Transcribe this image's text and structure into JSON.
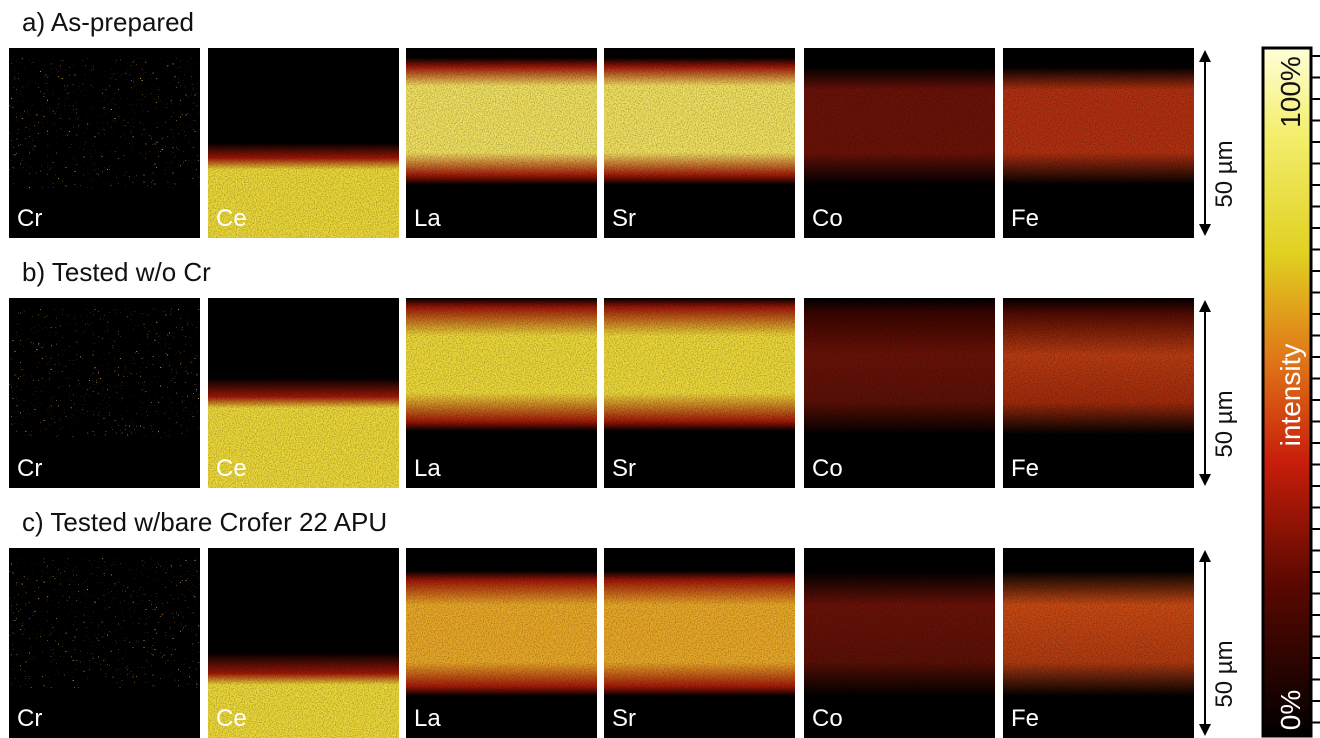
{
  "rows": [
    {
      "title": "a) As-prepared",
      "panels": [
        "Cr",
        "Ce",
        "La",
        "Sr",
        "Co",
        "Fe"
      ],
      "scale": "50 µm"
    },
    {
      "title": "b) Tested w/o Cr",
      "panels": [
        "Cr",
        "Ce",
        "La",
        "Sr",
        "Co",
        "Fe"
      ],
      "scale": "50 µm"
    },
    {
      "title": "c) Tested w/bare Crofer 22 APU",
      "panels": [
        "Cr",
        "Ce",
        "La",
        "Sr",
        "Co",
        "Fe"
      ],
      "scale": "50 µm"
    }
  ],
  "colorbar": {
    "top": "100%",
    "label": "intensity",
    "bottom": "0%"
  }
}
